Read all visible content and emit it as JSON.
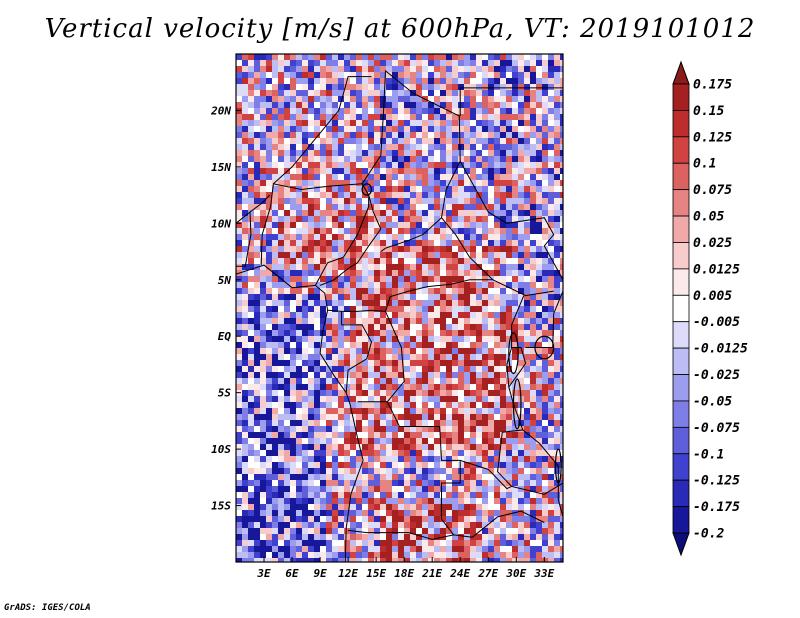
{
  "title": "Vertical velocity [m/s] at 600hPa, VT: 2019101012",
  "footer": "GrADS: IGES/COLA",
  "map": {
    "lon_range": [
      0,
      35
    ],
    "lat_range": [
      -20,
      25
    ],
    "x_ticks": [
      "3E",
      "6E",
      "9E",
      "12E",
      "15E",
      "18E",
      "21E",
      "24E",
      "27E",
      "30E",
      "33E"
    ],
    "x_tick_values": [
      3,
      6,
      9,
      12,
      15,
      18,
      21,
      24,
      27,
      30,
      33
    ],
    "y_ticks": [
      "20N",
      "15N",
      "10N",
      "5N",
      "EQ",
      "5S",
      "10S",
      "15S"
    ],
    "y_tick_values": [
      20,
      15,
      10,
      5,
      0,
      -5,
      -10,
      -15
    ]
  },
  "colorbar": {
    "labels": [
      "0.175",
      "0.15",
      "0.125",
      "0.1",
      "0.075",
      "0.05",
      "0.025",
      "0.0125",
      "0.005",
      "-0.005",
      "-0.0125",
      "-0.025",
      "-0.05",
      "-0.075",
      "-0.1",
      "-0.125",
      "-0.175",
      "-0.2"
    ],
    "colors": [
      "#8b1a1a",
      "#a52121",
      "#be2d2d",
      "#d14343",
      "#dc6161",
      "#e68484",
      "#f0a8a8",
      "#f7cccc",
      "#fce9e9",
      "#ffffff",
      "#dcdcfa",
      "#bdbdf5",
      "#9d9def",
      "#7e7ee6",
      "#5f5fdb",
      "#4141cf",
      "#2a2ab8",
      "#17179a",
      "#0d0d7a"
    ]
  },
  "colors": {
    "positive": "#d03030",
    "negative": "#3838d8",
    "border": "#000000"
  }
}
